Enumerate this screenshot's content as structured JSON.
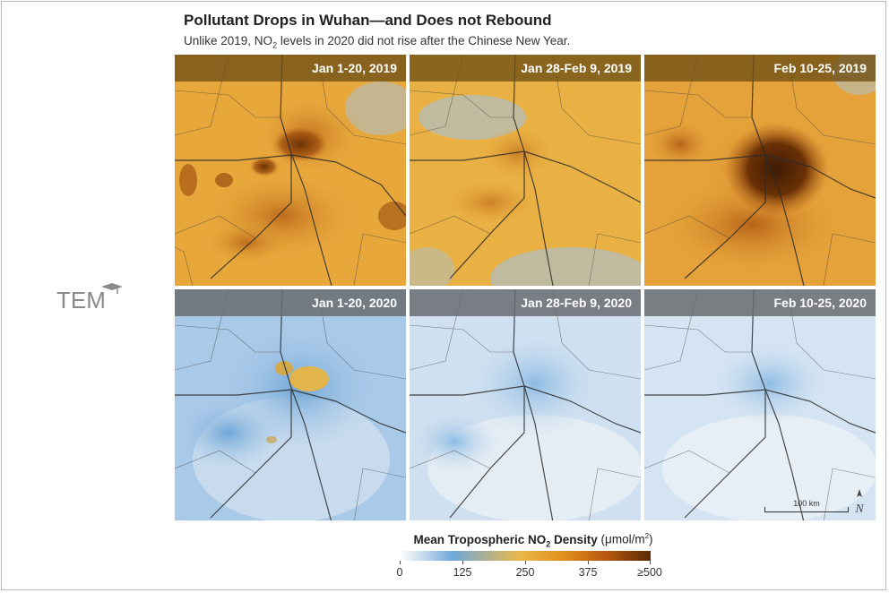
{
  "header": {
    "title": "Pollutant Drops in Wuhan—and Does not Rebound",
    "subtitle_before": "Unlike 2019, NO",
    "subtitle_sub": "2",
    "subtitle_after": " levels in 2020 did not rise after the Chinese New Year."
  },
  "logo": {
    "text": "TEM"
  },
  "panels": {
    "r2019": [
      {
        "label": "Jan 1-20, 2019",
        "level": "high"
      },
      {
        "label": "Jan 28-Feb 9, 2019",
        "level": "medium"
      },
      {
        "label": "Feb 10-25, 2019",
        "level": "very-high"
      }
    ],
    "r2020": [
      {
        "label": "Jan 1-20, 2020",
        "level": "low"
      },
      {
        "label": "Jan 28-Feb 9, 2020",
        "level": "very-low"
      },
      {
        "label": "Feb 10-25, 2020",
        "level": "very-low"
      }
    ]
  },
  "scalebar": {
    "label": "100 km"
  },
  "north_symbol": "N",
  "legend": {
    "title_main_before": "Mean Tropospheric NO",
    "title_main_sub": "2",
    "title_main_after": " Density",
    "title_unit_before": " (μmol/m",
    "title_unit_sup": "2",
    "title_unit_after": ")",
    "ticks": [
      "0",
      "125",
      "250",
      "375",
      "≥500"
    ]
  },
  "colors": {
    "orange_base": "#e8a83a",
    "blue_base": "#a9c9e8",
    "hotspot": "#5a2a05",
    "road": "#2b2b2b"
  }
}
